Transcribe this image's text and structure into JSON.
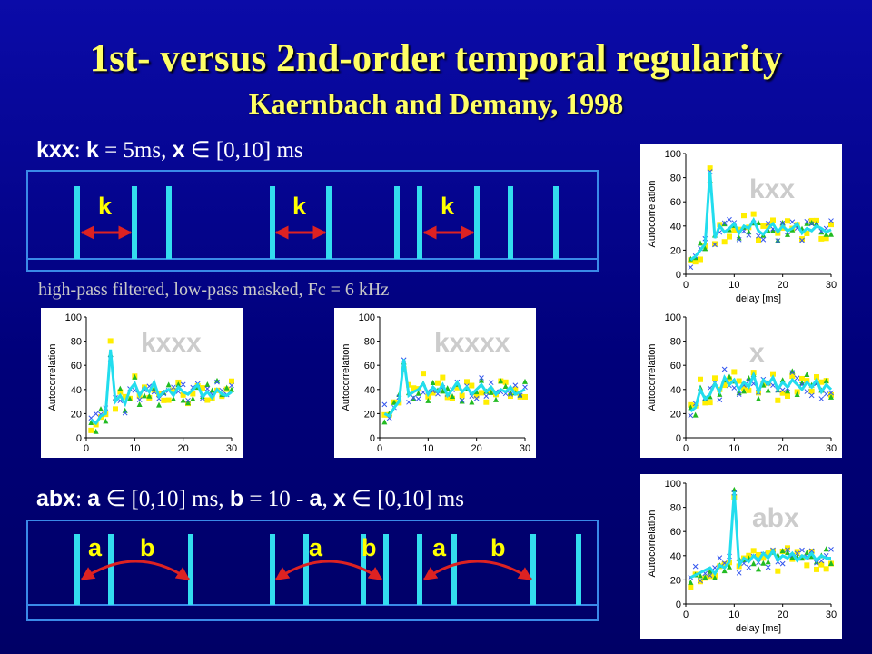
{
  "slide": {
    "title": "1st- versus 2nd-order temporal regularity",
    "subtitle": "Kaernbach and Demany, 1998",
    "kxx_condition": {
      "var1": "kxx",
      "text1": ": ",
      "var2": "k",
      "text2": " = 5ms, ",
      "var3": "x",
      "text3": " ∈ [0,10] ms"
    },
    "abx_condition": {
      "var1": "abx",
      "text1": ": ",
      "var2": "a",
      "text2": " ∈ [0,10] ms, ",
      "var3": "b",
      "text3": " = 10 - ",
      "var4": "a",
      "text4": ", ",
      "var5": "x",
      "text5": " ∈ [0,10] ms"
    },
    "filter_note": "high-pass filtered, low-pass masked, Fc = 6 kHz",
    "kxx_pulse_labels": [
      "k",
      "k",
      "k"
    ],
    "abx_pulse_labels": [
      "a",
      "b",
      "a",
      "b",
      "a",
      "b"
    ],
    "colors": {
      "pulse": "#33ddee",
      "arrow": "#dd2222",
      "label": "#ffff00"
    }
  },
  "chart_data": [
    {
      "id": "kxx",
      "type": "line",
      "label": "kxx",
      "xlabel": "delay [ms]",
      "ylabel": "Autocorrelation",
      "xticks": [
        0,
        10,
        20,
        30
      ],
      "yticks": [
        0,
        20,
        40,
        60,
        80,
        100
      ],
      "xlim": [
        0,
        30
      ],
      "ylim": [
        0,
        100
      ],
      "series": [
        {
          "x": [
            1,
            2,
            3,
            4,
            5,
            6,
            7,
            8,
            9,
            10,
            11,
            12,
            13,
            14,
            15,
            16,
            17,
            18,
            19,
            20,
            21,
            22,
            23,
            24,
            25,
            26,
            27,
            28,
            29,
            30
          ],
          "values": [
            12,
            15,
            20,
            25,
            85,
            30,
            40,
            35,
            38,
            42,
            34,
            40,
            38,
            45,
            36,
            33,
            38,
            42,
            35,
            40,
            36,
            38,
            42,
            34,
            38,
            36,
            40,
            38,
            35,
            37
          ]
        }
      ]
    },
    {
      "id": "kxxx",
      "type": "line",
      "label": "kxxx",
      "xlabel": "",
      "ylabel": "Autocorrelation",
      "xticks": [
        0,
        10,
        20,
        30
      ],
      "yticks": [
        0,
        20,
        40,
        60,
        80,
        100
      ],
      "xlim": [
        0,
        30
      ],
      "ylim": [
        0,
        100
      ],
      "series": [
        {
          "x": [
            1,
            2,
            3,
            4,
            5,
            6,
            7,
            8,
            9,
            10,
            11,
            12,
            13,
            14,
            15,
            16,
            17,
            18,
            19,
            20,
            21,
            22,
            23,
            24,
            25,
            26,
            27,
            28,
            29,
            30
          ],
          "values": [
            15,
            12,
            18,
            20,
            73,
            30,
            35,
            28,
            40,
            45,
            35,
            42,
            38,
            46,
            34,
            38,
            40,
            35,
            42,
            38,
            36,
            40,
            44,
            34,
            38,
            33,
            40,
            36,
            35,
            38
          ]
        }
      ]
    },
    {
      "id": "kxxxx",
      "type": "line",
      "label": "kxxxx",
      "xlabel": "",
      "ylabel": "Autocorrelation",
      "xticks": [
        0,
        10,
        20,
        30
      ],
      "yticks": [
        0,
        20,
        40,
        60,
        80,
        100
      ],
      "xlim": [
        0,
        30
      ],
      "ylim": [
        0,
        100
      ],
      "series": [
        {
          "x": [
            1,
            2,
            3,
            4,
            5,
            6,
            7,
            8,
            9,
            10,
            11,
            12,
            13,
            14,
            15,
            16,
            17,
            18,
            19,
            20,
            21,
            22,
            23,
            24,
            25,
            26,
            27,
            28,
            29,
            30
          ],
          "values": [
            20,
            18,
            25,
            30,
            65,
            35,
            38,
            40,
            45,
            36,
            42,
            38,
            44,
            35,
            40,
            46,
            38,
            42,
            36,
            40,
            44,
            38,
            42,
            36,
            40,
            38,
            42,
            36,
            38,
            40
          ]
        }
      ]
    },
    {
      "id": "x",
      "type": "line",
      "label": "x",
      "xlabel": "",
      "ylabel": "Autocorrelation",
      "xticks": [
        0,
        10,
        20,
        30
      ],
      "yticks": [
        0,
        20,
        40,
        60,
        80,
        100
      ],
      "xlim": [
        0,
        30
      ],
      "ylim": [
        0,
        100
      ],
      "series": [
        {
          "x": [
            1,
            2,
            3,
            4,
            5,
            6,
            7,
            8,
            9,
            10,
            11,
            12,
            13,
            14,
            15,
            16,
            17,
            18,
            19,
            20,
            21,
            22,
            23,
            24,
            25,
            26,
            27,
            28,
            29,
            30
          ],
          "values": [
            22,
            25,
            40,
            32,
            36,
            45,
            38,
            50,
            44,
            48,
            40,
            46,
            42,
            52,
            38,
            48,
            44,
            50,
            40,
            46,
            42,
            48,
            44,
            40,
            46,
            42,
            48,
            38,
            44,
            40
          ]
        }
      ]
    },
    {
      "id": "abx",
      "type": "line",
      "label": "abx",
      "xlabel": "delay [ms]",
      "ylabel": "Autocorrelation",
      "xticks": [
        0,
        10,
        20,
        30
      ],
      "yticks": [
        0,
        20,
        40,
        60,
        80,
        100
      ],
      "xlim": [
        0,
        30
      ],
      "ylim": [
        0,
        100
      ],
      "series": [
        {
          "x": [
            1,
            2,
            3,
            4,
            5,
            6,
            7,
            8,
            9,
            10,
            11,
            12,
            13,
            14,
            15,
            16,
            17,
            18,
            19,
            20,
            21,
            22,
            23,
            24,
            25,
            26,
            27,
            28,
            29,
            30
          ],
          "values": [
            22,
            24,
            26,
            28,
            30,
            25,
            32,
            30,
            35,
            93,
            32,
            38,
            35,
            40,
            36,
            42,
            38,
            44,
            36,
            40,
            38,
            42,
            36,
            40,
            38,
            42,
            36,
            40,
            38,
            38
          ]
        }
      ]
    }
  ]
}
